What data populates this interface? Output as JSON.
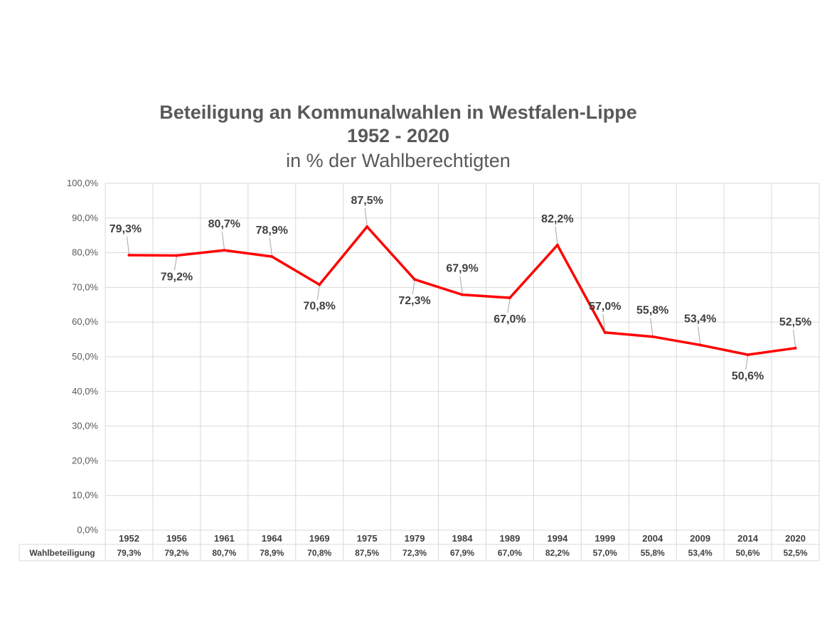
{
  "colors": {
    "line": "#ff0000",
    "grid": "#d9d9d9",
    "text": "#595959",
    "label_text": "#404040"
  },
  "chart_data": {
    "type": "line",
    "title": "Beteiligung an Kommunalwahlen in Westfalen-Lippe",
    "title_line2": "1952 - 2020",
    "subtitle": "in % der Wahlberechtigten",
    "categories": [
      "1952",
      "1956",
      "1961",
      "1964",
      "1969",
      "1975",
      "1979",
      "1984",
      "1989",
      "1994",
      "1999",
      "2004",
      "2009",
      "2014",
      "2020"
    ],
    "series": [
      {
        "name": "Wahlbeteiligung",
        "values": [
          79.3,
          79.2,
          80.7,
          78.9,
          70.8,
          87.5,
          72.3,
          67.9,
          67.0,
          82.2,
          57.0,
          55.8,
          53.4,
          50.6,
          52.5
        ],
        "data_labels": [
          "79,3%",
          "79,2%",
          "80,7%",
          "78,9%",
          "70,8%",
          "87,5%",
          "72,3%",
          "67,9%",
          "67,0%",
          "82,2%",
          "57,0%",
          "55,8%",
          "53,4%",
          "50,6%",
          "52,5%"
        ],
        "table_values": [
          "79,3%",
          "79,2%",
          "80,7%",
          "78,9%",
          "70,8%",
          "87,5%",
          "72,3%",
          "67,9%",
          "67,0%",
          "82,2%",
          "57,0%",
          "55,8%",
          "53,4%",
          "50,6%",
          "52,5%"
        ]
      }
    ],
    "ylim": [
      0,
      100
    ],
    "yticks": [
      0,
      10,
      20,
      30,
      40,
      50,
      60,
      70,
      80,
      90,
      100
    ],
    "ytick_labels": [
      "0,0%",
      "10,0%",
      "20,0%",
      "30,0%",
      "40,0%",
      "50,0%",
      "60,0%",
      "70,0%",
      "80,0%",
      "90,0%",
      "100,0%"
    ],
    "grid": true,
    "data_table": true,
    "legend": "none"
  }
}
